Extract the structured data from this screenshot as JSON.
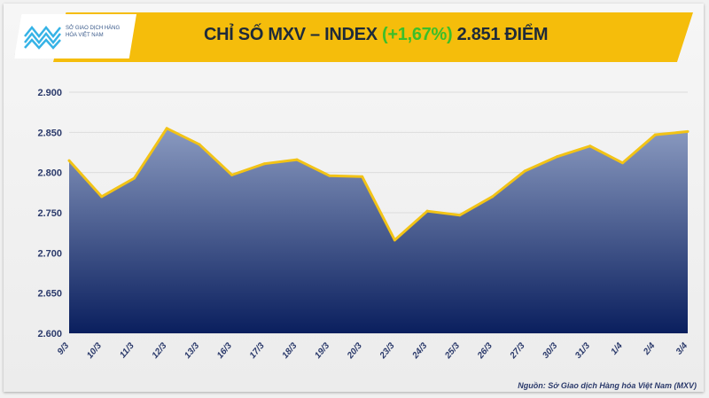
{
  "header": {
    "logo_text": "SỞ GIAO DỊCH HÀNG HÓA VIỆT NAM",
    "title_prefix": "CHỈ SỐ MXV – INDEX",
    "title_change": "(+1,67%)",
    "title_suffix": "2.851 ĐIỂM"
  },
  "source": "Nguồn: Sở Giao dịch Hàng hóa Việt Nam (MXV)",
  "colors": {
    "banner": "#f5bd0b",
    "line": "#f2c316",
    "area_top": "#8a9ac0",
    "area_bottom": "#0a1f5e",
    "change": "#3bbf2a"
  },
  "chart_data": {
    "type": "area",
    "title": "CHỈ SỐ MXV – INDEX (+1,67%) 2.851 ĐIỂM",
    "categories": [
      "9/3",
      "10/3",
      "11/3",
      "12/3",
      "13/3",
      "16/3",
      "17/3",
      "18/3",
      "19/3",
      "20/3",
      "23/3",
      "24/3",
      "25/3",
      "26/3",
      "27/3",
      "30/3",
      "31/3",
      "1/4",
      "2/4",
      "3/4"
    ],
    "values": [
      2815,
      2770,
      2793,
      2855,
      2835,
      2797,
      2811,
      2816,
      2796,
      2795,
      2716,
      2752,
      2747,
      2770,
      2802,
      2820,
      2833,
      2812,
      2847,
      2851
    ],
    "ylim": [
      2600,
      2900
    ],
    "yticks": [
      "2.600",
      "2.650",
      "2.700",
      "2.750",
      "2.800",
      "2.850",
      "2.900"
    ],
    "grid": true,
    "legend": "none"
  }
}
